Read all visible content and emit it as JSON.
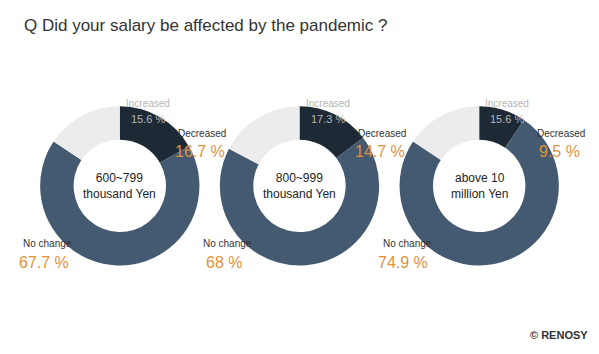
{
  "title": "Q Did your salary be affected by the pandemic ?",
  "credit": "© RENOSY",
  "chart_data": [
    {
      "type": "pie",
      "title": "600~799\nthousand Yen",
      "categories": [
        "Decreased",
        "No change",
        "Increased"
      ],
      "values": [
        16.7,
        67.7,
        15.6
      ],
      "value_labels": [
        "16.7 %",
        "67.7 %",
        "15.6 %"
      ],
      "colors": [
        "#1e2936",
        "#445a70",
        "#ececec"
      ]
    },
    {
      "type": "pie",
      "title": "800~999\nthousand Yen",
      "categories": [
        "Decreased",
        "No change",
        "Increased"
      ],
      "values": [
        14.7,
        68,
        17.3
      ],
      "value_labels": [
        "14.7 %",
        "68 %",
        "17.3 %"
      ],
      "colors": [
        "#1e2936",
        "#445a70",
        "#ececec"
      ]
    },
    {
      "type": "pie",
      "title": "above 10\nmillion Yen",
      "categories": [
        "Decreased",
        "No change",
        "Increased"
      ],
      "values": [
        9.5,
        74.9,
        15.6
      ],
      "value_labels": [
        "9.5 %",
        "74.9 %",
        "15.6 %"
      ],
      "colors": [
        "#1e2936",
        "#445a70",
        "#ececec"
      ]
    }
  ]
}
